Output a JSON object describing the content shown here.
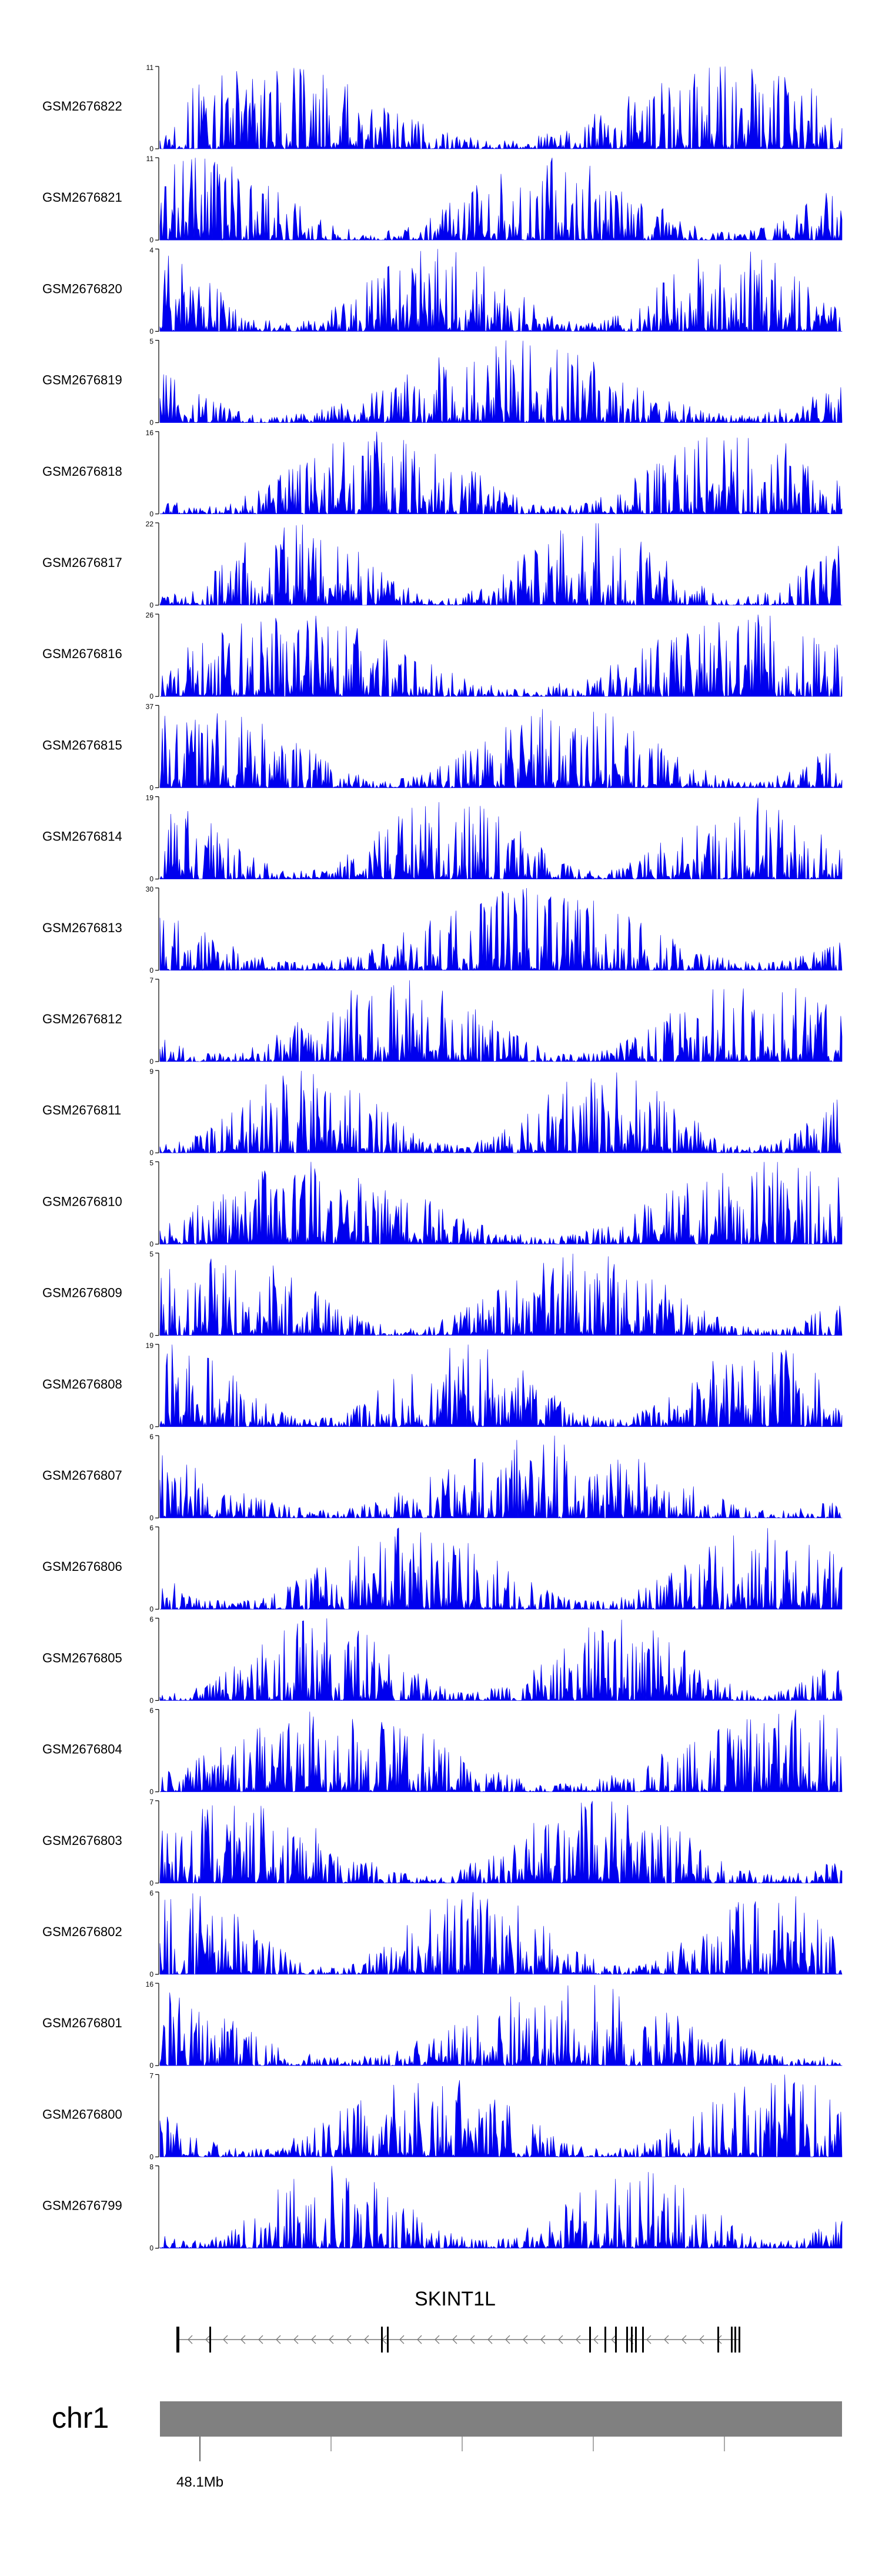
{
  "chart_data": {
    "type": "area",
    "title": "",
    "xlabel": "",
    "ylabel": "",
    "track_color": "#0000ee",
    "tracks": [
      {
        "name": "GSM2676822",
        "ymax": 11
      },
      {
        "name": "GSM2676821",
        "ymax": 11
      },
      {
        "name": "GSM2676820",
        "ymax": 4
      },
      {
        "name": "GSM2676819",
        "ymax": 5
      },
      {
        "name": "GSM2676818",
        "ymax": 16
      },
      {
        "name": "GSM2676817",
        "ymax": 22
      },
      {
        "name": "GSM2676816",
        "ymax": 26
      },
      {
        "name": "GSM2676815",
        "ymax": 37
      },
      {
        "name": "GSM2676814",
        "ymax": 19
      },
      {
        "name": "GSM2676813",
        "ymax": 30
      },
      {
        "name": "GSM2676812",
        "ymax": 7
      },
      {
        "name": "GSM2676811",
        "ymax": 9
      },
      {
        "name": "GSM2676810",
        "ymax": 5
      },
      {
        "name": "GSM2676809",
        "ymax": 5
      },
      {
        "name": "GSM2676808",
        "ymax": 19
      },
      {
        "name": "GSM2676807",
        "ymax": 6
      },
      {
        "name": "GSM2676806",
        "ymax": 6
      },
      {
        "name": "GSM2676805",
        "ymax": 6
      },
      {
        "name": "GSM2676804",
        "ymax": 6
      },
      {
        "name": "GSM2676803",
        "ymax": 7
      },
      {
        "name": "GSM2676802",
        "ymax": 6
      },
      {
        "name": "GSM2676801",
        "ymax": 16
      },
      {
        "name": "GSM2676800",
        "ymax": 7
      },
      {
        "name": "GSM2676799",
        "ymax": 8
      }
    ],
    "gene": {
      "name": "SKINT1L",
      "strand": "-",
      "exon_count": 15
    },
    "ideogram": {
      "chromosome": "chr1",
      "tick_label": "48.1Mb",
      "band_color": "#808080",
      "extra_ticks": 4
    }
  }
}
